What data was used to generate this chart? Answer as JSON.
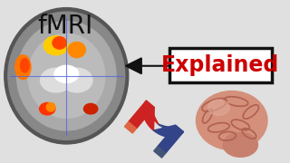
{
  "background_color": "#e0e0e0",
  "title_text": "fMRI",
  "title_fontsize": 20,
  "title_color": "#111111",
  "explained_text": "Explained",
  "explained_fontsize": 17,
  "explained_color": "#cc0000",
  "explained_box_edge": "#111111",
  "explained_box_face": "#ffffff",
  "arrow_color": "#111111",
  "arrow_outline": "#cc2222"
}
